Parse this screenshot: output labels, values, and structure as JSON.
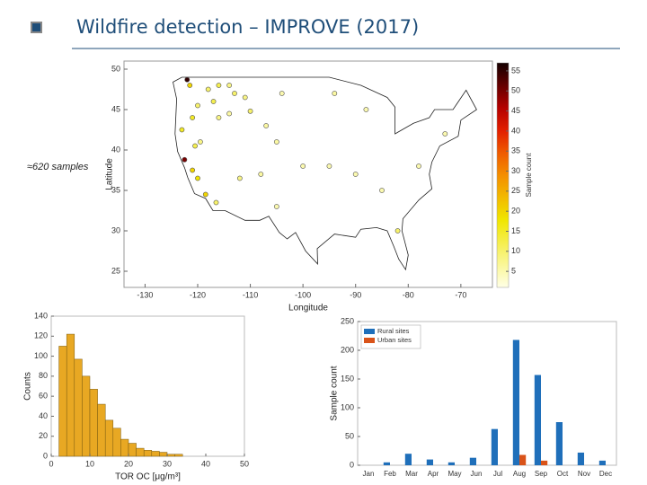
{
  "title": "Wildfire detection – IMPROVE (2017)",
  "note": "≈620 samples",
  "map": {
    "type": "scatter",
    "xlabel": "Longitude",
    "ylabel": "Latitude",
    "xlim": [
      -134,
      -64
    ],
    "ylim": [
      23,
      51
    ],
    "xticks": [
      -130,
      -120,
      -110,
      -100,
      -90,
      -80,
      -70
    ],
    "yticks": [
      25,
      30,
      35,
      40,
      45,
      50
    ],
    "colorbar": {
      "label": "Sample count",
      "lim": [
        1,
        57
      ],
      "ticks": [
        5,
        10,
        15,
        20,
        25,
        30,
        35,
        40,
        45,
        50,
        55
      ]
    },
    "sites": [
      {
        "lon": -122,
        "lat": 48.7,
        "count": 55
      },
      {
        "lon": -121.5,
        "lat": 48,
        "count": 20
      },
      {
        "lon": -118,
        "lat": 47.5,
        "count": 10
      },
      {
        "lon": -116,
        "lat": 48,
        "count": 12
      },
      {
        "lon": -114,
        "lat": 48,
        "count": 8
      },
      {
        "lon": -113,
        "lat": 47,
        "count": 10
      },
      {
        "lon": -111,
        "lat": 46.5,
        "count": 8
      },
      {
        "lon": -117,
        "lat": 46,
        "count": 12
      },
      {
        "lon": -120,
        "lat": 45.5,
        "count": 10
      },
      {
        "lon": -121,
        "lat": 44,
        "count": 15
      },
      {
        "lon": -123,
        "lat": 42.5,
        "count": 15
      },
      {
        "lon": -119.5,
        "lat": 41,
        "count": 8
      },
      {
        "lon": -116,
        "lat": 44,
        "count": 8
      },
      {
        "lon": -114,
        "lat": 44.5,
        "count": 6
      },
      {
        "lon": -110,
        "lat": 44.8,
        "count": 10
      },
      {
        "lon": -107,
        "lat": 43,
        "count": 6
      },
      {
        "lon": -105,
        "lat": 41,
        "count": 6
      },
      {
        "lon": -122.5,
        "lat": 38.8,
        "count": 50
      },
      {
        "lon": -121,
        "lat": 37.5,
        "count": 20
      },
      {
        "lon": -120,
        "lat": 36.5,
        "count": 18
      },
      {
        "lon": -118.5,
        "lat": 34.5,
        "count": 20
      },
      {
        "lon": -116.5,
        "lat": 33.5,
        "count": 10
      },
      {
        "lon": -112,
        "lat": 36.5,
        "count": 8
      },
      {
        "lon": -108,
        "lat": 37,
        "count": 6
      },
      {
        "lon": -105,
        "lat": 33,
        "count": 5
      },
      {
        "lon": -100,
        "lat": 38,
        "count": 5
      },
      {
        "lon": -95,
        "lat": 38,
        "count": 5
      },
      {
        "lon": -90,
        "lat": 37,
        "count": 5
      },
      {
        "lon": -85,
        "lat": 35,
        "count": 5
      },
      {
        "lon": -82,
        "lat": 30,
        "count": 10
      },
      {
        "lon": -78,
        "lat": 38,
        "count": 5
      },
      {
        "lon": -73,
        "lat": 42,
        "count": 5
      },
      {
        "lon": -94,
        "lat": 47,
        "count": 6
      },
      {
        "lon": -88,
        "lat": 45,
        "count": 5
      },
      {
        "lon": -104,
        "lat": 47,
        "count": 5
      },
      {
        "lon": -120.5,
        "lat": 40.5,
        "count": 12
      }
    ]
  },
  "chart_data": [
    {
      "type": "histogram",
      "xlabel": "TOR OC [μg/m³]",
      "ylabel": "Counts",
      "color": "#e8a823",
      "bins": [
        2,
        4,
        6,
        8,
        10,
        12,
        14,
        16,
        18,
        20,
        22,
        24,
        26,
        28,
        30,
        32,
        34
      ],
      "counts": [
        110,
        122,
        97,
        80,
        67,
        52,
        36,
        28,
        17,
        13,
        8,
        6,
        5,
        4,
        2,
        2
      ],
      "xlim": [
        0,
        50
      ],
      "xticks": [
        0,
        10,
        20,
        30,
        40,
        50
      ],
      "ylim": [
        0,
        140
      ],
      "yticks": [
        0,
        20,
        40,
        60,
        80,
        100,
        120,
        140
      ]
    },
    {
      "type": "bar",
      "ylabel": "Sample count",
      "legend": "upper-left",
      "categories": [
        "Jan",
        "Feb",
        "Mar",
        "Apr",
        "May",
        "Jun",
        "Jul",
        "Aug",
        "Sep",
        "Oct",
        "Nov",
        "Dec"
      ],
      "series": [
        {
          "name": "Rural sites",
          "color": "#1f6fba",
          "values": [
            0,
            5,
            20,
            10,
            5,
            13,
            63,
            218,
            157,
            75,
            22,
            8
          ]
        },
        {
          "name": "Urban sites",
          "color": "#d95319",
          "values": [
            0,
            0,
            0,
            0,
            0,
            0,
            0,
            18,
            8,
            0,
            0,
            0
          ]
        }
      ],
      "ylim": [
        0,
        250
      ],
      "yticks": [
        0,
        50,
        100,
        150,
        200,
        250
      ]
    }
  ]
}
